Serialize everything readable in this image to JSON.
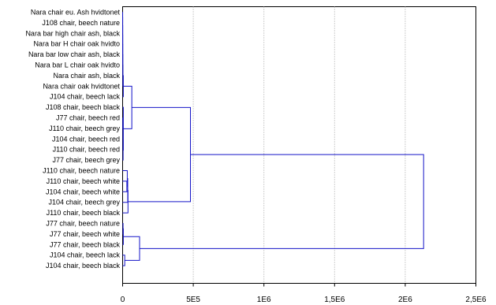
{
  "chart_data": {
    "type": "dendrogram",
    "orientation": "horizontal",
    "title": "",
    "xlabel": "",
    "ylabel": "",
    "xlim": [
      0,
      2500000
    ],
    "xticks": [
      {
        "value": 0,
        "label": "0"
      },
      {
        "value": 500000,
        "label": "5E5"
      },
      {
        "value": 1000000,
        "label": "1E6"
      },
      {
        "value": 1500000,
        "label": "1,5E6"
      },
      {
        "value": 2000000,
        "label": "2E6"
      },
      {
        "value": 2500000,
        "label": "2,5E6"
      }
    ],
    "grid": "vertical-dotted",
    "leaves": [
      "Nara chair eu. Ash hvidtonet",
      "J108 chair, beech nature",
      "Nara bar high chair ash, black",
      "Nara bar H chair oak hvidto",
      "Nara bar low chair ash, black",
      "Nara bar L chair oak hvidto",
      "Nara chair ash, black",
      "Nara chair oak hvidtonet",
      "J104 chair, beech lack",
      "J108 chair, beech black",
      "J77 chair, beech red",
      "J110 chair, beech grey",
      "J104 chair, beech red",
      "J110 chair, beech red",
      "J77 chair, beech grey",
      "J110 chair, beech nature",
      "J110 chair, beech white",
      "J104 chair, beech white",
      "J104 chair, beech grey",
      "J110 chair, beech black",
      "J77 chair, beech nature",
      "J77 chair, beech white",
      "J77 chair, beech black",
      "J104 chair, beech lack",
      "J104 chair, beech black"
    ],
    "merges": [
      {
        "a": "L0",
        "b": "L1",
        "height": 200
      },
      {
        "a": "N0",
        "b": "L2",
        "height": 400
      },
      {
        "a": "N1",
        "b": "L3",
        "height": 600
      },
      {
        "a": "N2",
        "b": "L4",
        "height": 800
      },
      {
        "a": "N3",
        "b": "L5",
        "height": 1000
      },
      {
        "a": "N4",
        "b": "L6",
        "height": 1500
      },
      {
        "a": "N5",
        "b": "L7",
        "height": 2000
      },
      {
        "a": "N6",
        "b": "L8",
        "height": 5000
      },
      {
        "a": "L10",
        "b": "L11",
        "height": 1500
      },
      {
        "a": "N8",
        "b": "L12",
        "height": 2500
      },
      {
        "a": "N9",
        "b": "L13",
        "height": 3000
      },
      {
        "a": "N10",
        "b": "L14",
        "height": 3500
      },
      {
        "a": "L9",
        "b": "N11",
        "height": 5000
      },
      {
        "a": "N7",
        "b": "N12",
        "height": 65000
      },
      {
        "a": "L16",
        "b": "L17",
        "height": 30000
      },
      {
        "a": "L15",
        "b": "N14",
        "height": 33000
      },
      {
        "a": "N15",
        "b": "L18",
        "height": 36000
      },
      {
        "a": "N16",
        "b": "L19",
        "height": 38000
      },
      {
        "a": "N13",
        "b": "N17",
        "height": 480000
      },
      {
        "a": "L20",
        "b": "L21",
        "height": 3000
      },
      {
        "a": "N19",
        "b": "L22",
        "height": 5000
      },
      {
        "a": "L23",
        "b": "L24",
        "height": 15000
      },
      {
        "a": "N20",
        "b": "N21",
        "height": 120000
      },
      {
        "a": "N18",
        "b": "N22",
        "height": 2130000
      }
    ],
    "colors": {
      "tree": "#1414c8",
      "grid": "#a0a0a0",
      "frame": "#000000",
      "text": "#000000"
    }
  }
}
